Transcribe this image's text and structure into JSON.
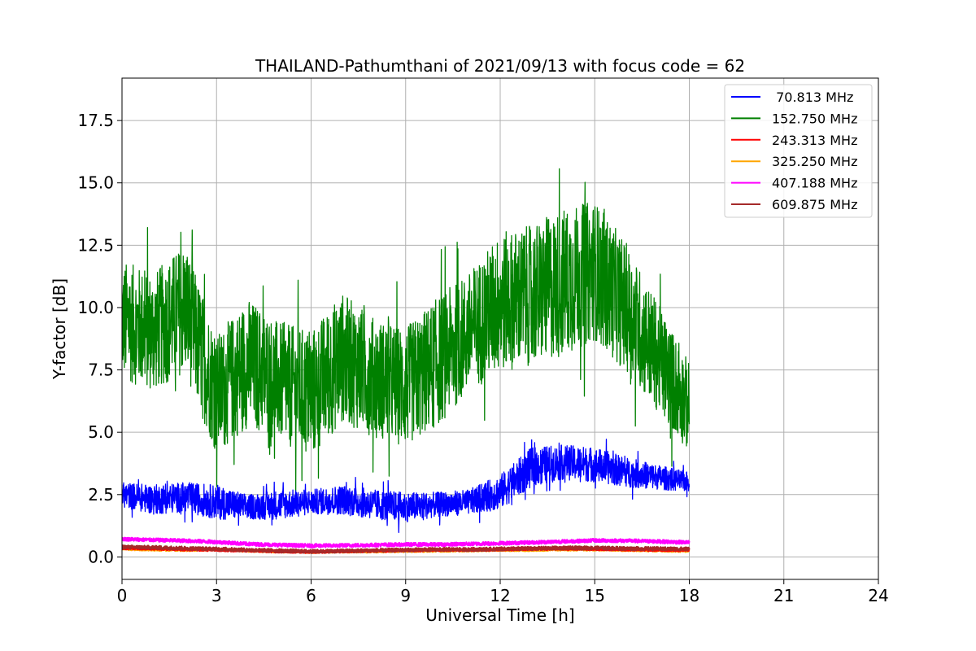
{
  "chart_data": {
    "type": "line",
    "title": "THAILAND-Pathumthani of 2021/09/13 with focus code = 62",
    "xlabel": "Universal Time [h]",
    "ylabel": "Y-factor [dB]",
    "xlim": [
      0,
      24
    ],
    "ylim": [
      -0.9,
      19.2
    ],
    "xticks": [
      0,
      3,
      6,
      9,
      12,
      15,
      18,
      21,
      24
    ],
    "xtick_labels": [
      "0",
      "3",
      "6",
      "9",
      "12",
      "15",
      "18",
      "21",
      "24"
    ],
    "yticks": [
      0.0,
      2.5,
      5.0,
      7.5,
      10.0,
      12.5,
      15.0,
      17.5
    ],
    "ytick_labels": [
      "0.0",
      "2.5",
      "5.0",
      "7.5",
      "10.0",
      "12.5",
      "15.0",
      "17.5"
    ],
    "grid": true,
    "legend_position": "top-right",
    "x": [
      0,
      1,
      2,
      3,
      4,
      5,
      6,
      7,
      8,
      9,
      10,
      11,
      12,
      13,
      14,
      15,
      16,
      17,
      18
    ],
    "series": [
      {
        "name": " 70.813 MHz",
        "color": "#0000ff",
        "values": [
          2.5,
          2.3,
          2.4,
          2.2,
          2.0,
          2.1,
          2.2,
          2.3,
          2.1,
          2.0,
          2.1,
          2.2,
          2.6,
          3.6,
          3.8,
          3.7,
          3.4,
          3.2,
          3.0
        ],
        "band": [
          0.5,
          0.6,
          0.6,
          0.7,
          0.5,
          0.6,
          0.5,
          0.6,
          0.6,
          0.6,
          0.5,
          0.5,
          0.7,
          0.8,
          0.7,
          0.7,
          0.6,
          0.5,
          0.4
        ]
      },
      {
        "name": "152.750 MHz",
        "color": "#008000",
        "values": [
          9.5,
          9.0,
          10.0,
          6.5,
          7.8,
          7.0,
          6.5,
          8.0,
          7.2,
          6.8,
          7.8,
          9.0,
          10.2,
          10.5,
          11.0,
          11.5,
          10.0,
          8.0,
          6.0
        ],
        "band": [
          2.4,
          2.4,
          2.6,
          2.4,
          2.6,
          2.4,
          2.6,
          2.6,
          2.4,
          2.4,
          2.6,
          2.4,
          2.8,
          2.8,
          3.0,
          2.8,
          2.6,
          2.2,
          1.8
        ]
      },
      {
        "name": "243.313 MHz",
        "color": "#ff0000",
        "values": [
          0.35,
          0.33,
          0.3,
          0.28,
          0.25,
          0.22,
          0.2,
          0.22,
          0.24,
          0.26,
          0.28,
          0.28,
          0.3,
          0.32,
          0.33,
          0.32,
          0.3,
          0.28,
          0.27
        ],
        "band": [
          0.05,
          0.05,
          0.05,
          0.05,
          0.05,
          0.05,
          0.05,
          0.05,
          0.05,
          0.05,
          0.05,
          0.05,
          0.05,
          0.05,
          0.05,
          0.05,
          0.05,
          0.05,
          0.05
        ]
      },
      {
        "name": "325.250 MHz",
        "color": "#ffa500",
        "values": [
          0.32,
          0.3,
          0.28,
          0.3,
          0.25,
          0.22,
          0.2,
          0.22,
          0.22,
          0.24,
          0.25,
          0.26,
          0.28,
          0.28,
          0.3,
          0.3,
          0.28,
          0.26,
          0.24
        ],
        "band": [
          0.05,
          0.05,
          0.05,
          0.05,
          0.05,
          0.05,
          0.05,
          0.05,
          0.05,
          0.05,
          0.05,
          0.05,
          0.05,
          0.05,
          0.05,
          0.05,
          0.05,
          0.05,
          0.05
        ]
      },
      {
        "name": "407.188 MHz",
        "color": "#ff00ff",
        "values": [
          0.72,
          0.68,
          0.65,
          0.6,
          0.52,
          0.48,
          0.45,
          0.46,
          0.48,
          0.5,
          0.5,
          0.52,
          0.55,
          0.58,
          0.62,
          0.66,
          0.65,
          0.62,
          0.58
        ],
        "band": [
          0.07,
          0.07,
          0.07,
          0.07,
          0.07,
          0.07,
          0.07,
          0.07,
          0.07,
          0.07,
          0.07,
          0.07,
          0.07,
          0.07,
          0.07,
          0.07,
          0.07,
          0.07,
          0.07
        ]
      },
      {
        "name": "609.875 MHz",
        "color": "#a52a2a",
        "values": [
          0.4,
          0.38,
          0.35,
          0.32,
          0.28,
          0.25,
          0.22,
          0.24,
          0.26,
          0.28,
          0.3,
          0.3,
          0.32,
          0.34,
          0.36,
          0.36,
          0.34,
          0.33,
          0.32
        ],
        "band": [
          0.07,
          0.07,
          0.07,
          0.07,
          0.07,
          0.07,
          0.07,
          0.07,
          0.07,
          0.07,
          0.07,
          0.07,
          0.07,
          0.07,
          0.07,
          0.07,
          0.07,
          0.07,
          0.07
        ]
      }
    ]
  }
}
